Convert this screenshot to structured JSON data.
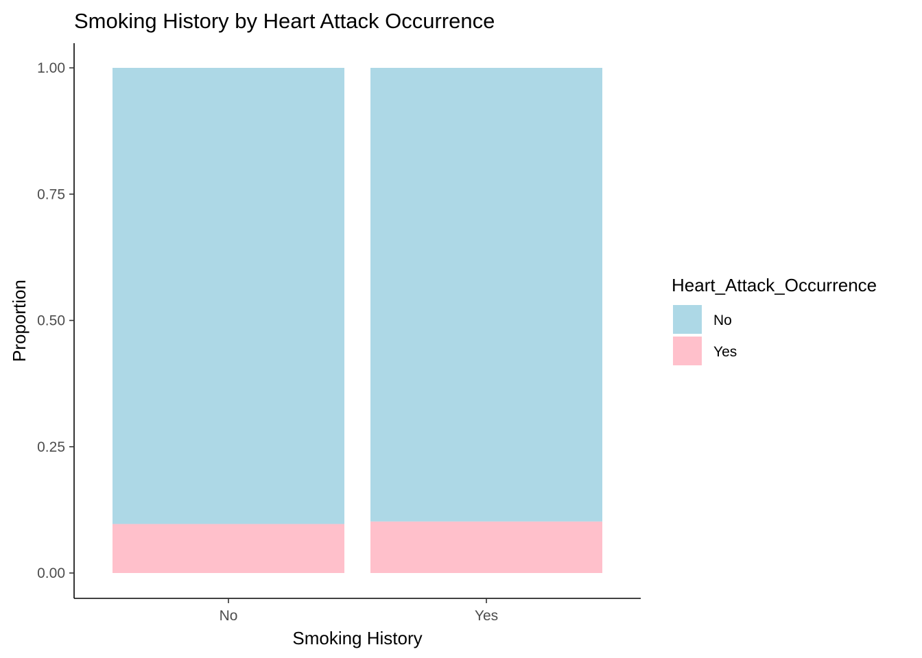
{
  "chart_data": {
    "type": "bar",
    "stacked": true,
    "title": "Smoking History by Heart Attack Occurrence",
    "xlabel": "Smoking History",
    "ylabel": "Proportion",
    "categories": [
      "No",
      "Yes"
    ],
    "ylim": [
      0,
      1
    ],
    "yticks": [
      "0.00",
      "0.25",
      "0.50",
      "0.75",
      "1.00"
    ],
    "ytick_values": [
      0,
      0.25,
      0.5,
      0.75,
      1.0
    ],
    "series": [
      {
        "name": "Yes",
        "values": [
          0.097,
          0.102
        ],
        "color": "#FFC0CB"
      },
      {
        "name": "No",
        "values": [
          0.903,
          0.898
        ],
        "color": "#ADD8E6"
      }
    ],
    "legend": {
      "title": "Heart_Attack_Occurrence",
      "placement": "right",
      "entries": [
        {
          "label": "No",
          "color": "#ADD8E6"
        },
        {
          "label": "Yes",
          "color": "#FFC0CB"
        }
      ]
    },
    "grid": false
  }
}
